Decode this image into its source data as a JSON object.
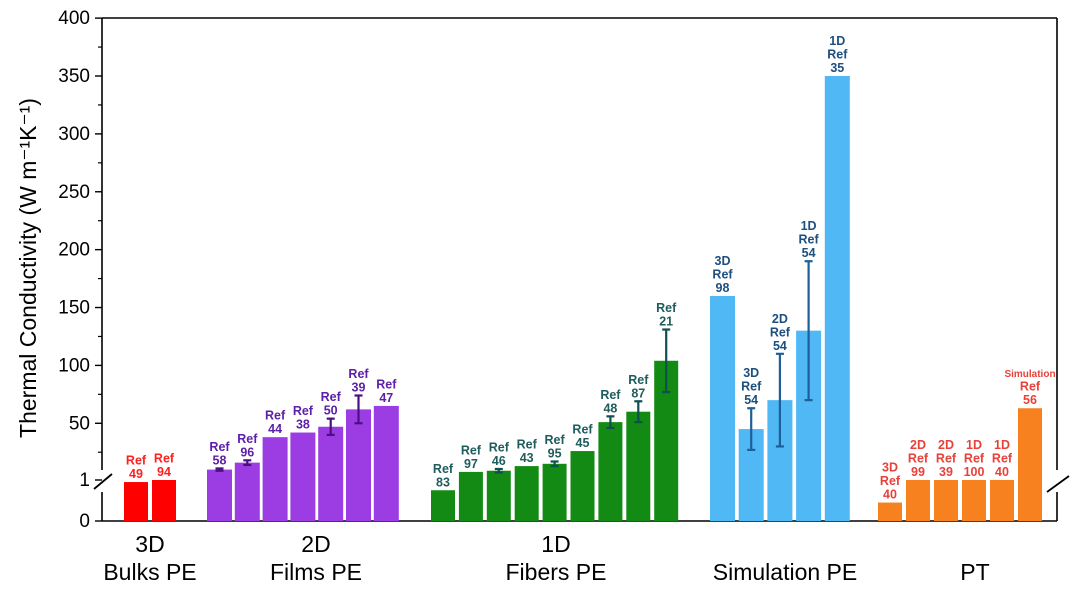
{
  "chart_data": {
    "type": "bar",
    "ylabel": "Thermal Conductivity (W m⁻¹K⁻¹)",
    "y_ticks": [
      "0",
      "1",
      "50",
      "100",
      "150",
      "200",
      "250",
      "300",
      "350",
      "400"
    ],
    "y_axis_break": true,
    "colors": {
      "bulk": "#ff0000",
      "films": "#9b3de3",
      "fibers": "#138a13",
      "simulation": "#4fb8f5",
      "pt": "#f7811e",
      "err_films": "#4b0f80",
      "err_fibers": "#0f4f4f",
      "err_sim": "#1d5f97",
      "lbl_bulk": "#ff1f1f",
      "lbl_films": "#5b1fa8",
      "lbl_fibers": "#1f5c5c",
      "lbl_sim": "#1d4f7f",
      "lbl_pt": "#e8413a"
    },
    "groups": [
      {
        "label_line1": "3D",
        "label_line2": "Bulks PE",
        "color_key": "bulk",
        "label_key": "lbl_bulk",
        "err_key": "",
        "bars": [
          {
            "value": 0.95,
            "label": [
              "Ref",
              "49"
            ]
          },
          {
            "value": 1.0,
            "label": [
              "Ref",
              "94"
            ]
          }
        ]
      },
      {
        "label_line1": "2D",
        "label_line2": "Films PE",
        "color_key": "films",
        "label_key": "lbl_films",
        "err_key": "err_films",
        "bars": [
          {
            "value": 10,
            "err": 1,
            "label": [
              "Ref",
              "58"
            ]
          },
          {
            "value": 16,
            "err": 2,
            "label": [
              "Ref",
              "96"
            ]
          },
          {
            "value": 38,
            "label": [
              "Ref",
              "44"
            ]
          },
          {
            "value": 42,
            "label": [
              "Ref",
              "38"
            ]
          },
          {
            "value": 47,
            "err": 7,
            "label": [
              "Ref",
              "50"
            ]
          },
          {
            "value": 62,
            "err": 12,
            "label": [
              "Ref",
              "39"
            ]
          },
          {
            "value": 65,
            "label": [
              "Ref",
              "47"
            ]
          }
        ]
      },
      {
        "label_line1": "1D",
        "label_line2": "Fibers PE",
        "color_key": "fibers",
        "label_key": "lbl_fibers",
        "err_key": "err_fibers",
        "bars": [
          {
            "value": 0.75,
            "label": [
              "Ref",
              "83"
            ]
          },
          {
            "value": 8,
            "label": [
              "Ref",
              "97"
            ]
          },
          {
            "value": 9,
            "err": 1.5,
            "label": [
              "Ref",
              "46"
            ]
          },
          {
            "value": 13,
            "label": [
              "Ref",
              "43"
            ]
          },
          {
            "value": 15,
            "err": 2,
            "label": [
              "Ref",
              "95"
            ]
          },
          {
            "value": 26,
            "label": [
              "Ref",
              "45"
            ]
          },
          {
            "value": 51,
            "err": 5,
            "label": [
              "Ref",
              "48"
            ]
          },
          {
            "value": 60,
            "err": 9,
            "label": [
              "Ref",
              "87"
            ]
          },
          {
            "value": 104,
            "err": 27,
            "label": [
              "Ref",
              "21"
            ]
          }
        ]
      },
      {
        "label_line1": "",
        "label_line2": "Simulation PE",
        "color_key": "simulation",
        "label_key": "lbl_sim",
        "err_key": "err_sim",
        "bars": [
          {
            "value": 160,
            "label": [
              "3D",
              "Ref",
              "98"
            ]
          },
          {
            "value": 45,
            "err": 18,
            "label": [
              "3D",
              "Ref",
              "54"
            ]
          },
          {
            "value": 70,
            "err": 40,
            "label": [
              "2D",
              "Ref",
              "54"
            ]
          },
          {
            "value": 130,
            "err": 60,
            "label": [
              "1D",
              "Ref",
              "54"
            ]
          },
          {
            "value": 350,
            "label": [
              "1D",
              "Ref",
              "35"
            ]
          }
        ]
      },
      {
        "label_line1": "",
        "label_line2": "PT",
        "color_key": "pt",
        "label_key": "lbl_pt",
        "err_key": "",
        "bars": [
          {
            "value": 0.45,
            "label": [
              "3D",
              "Ref",
              "40"
            ]
          },
          {
            "value": 1.0,
            "label": [
              "2D",
              "Ref",
              "99"
            ]
          },
          {
            "value": 1.0,
            "label": [
              "2D",
              "Ref",
              "39"
            ]
          },
          {
            "value": 1.0,
            "label": [
              "1D",
              "Ref",
              "100"
            ]
          },
          {
            "value": 1.05,
            "label": [
              "1D",
              "Ref",
              "40"
            ]
          },
          {
            "value": 63,
            "label": [
              "Simulation",
              "Ref",
              "56"
            ],
            "small_first": true
          }
        ]
      }
    ]
  }
}
